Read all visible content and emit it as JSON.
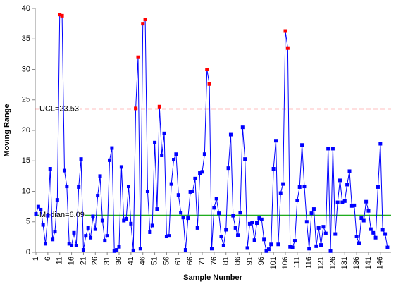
{
  "chart_data": {
    "type": "line",
    "x_label": "Sample Number",
    "y_label": "Moving Range",
    "x": [
      1,
      2,
      3,
      4,
      5,
      6,
      7,
      8,
      9,
      10,
      11,
      12,
      13,
      14,
      15,
      16,
      17,
      18,
      19,
      20,
      21,
      22,
      23,
      24,
      25,
      26,
      27,
      28,
      29,
      30,
      31,
      32,
      33,
      34,
      35,
      36,
      37,
      38,
      39,
      40,
      41,
      42,
      43,
      44,
      45,
      46,
      47,
      48,
      49,
      50,
      51,
      52,
      53,
      54,
      55,
      56,
      57,
      58,
      59,
      60,
      61,
      62,
      63,
      64,
      65,
      66,
      67,
      68,
      69,
      70,
      71,
      72,
      73,
      74,
      75,
      76,
      77,
      78,
      79,
      80,
      81,
      82,
      83,
      84,
      85,
      86,
      87,
      88,
      89,
      90,
      91,
      92,
      93,
      94,
      95,
      96,
      97,
      98,
      99,
      100,
      101,
      102,
      103,
      104,
      105,
      106,
      107,
      108,
      109,
      110,
      111,
      112,
      113,
      114,
      115,
      116,
      117,
      118,
      119,
      120,
      121,
      122,
      123,
      124,
      125,
      126,
      127,
      128,
      129,
      130,
      131,
      132,
      133,
      134,
      135,
      136,
      137,
      138,
      139,
      140,
      141,
      142,
      143,
      144,
      145,
      146,
      147,
      148,
      149
    ],
    "series": [
      {
        "color": "#0000ff",
        "out_color": "#ff0000",
        "values": [
          6.3,
          7.5,
          7,
          4.5,
          1.4,
          6,
          13.7,
          2.1,
          3.4,
          8.6,
          39,
          38.8,
          13.4,
          10.8,
          1.4,
          1.1,
          3.2,
          1.1,
          10.7,
          15.3,
          0.4,
          2.7,
          4,
          2.4,
          5.9,
          3.8,
          9.3,
          12.5,
          5.2,
          1.9,
          2.7,
          15.1,
          17.1,
          0.2,
          0.4,
          0.9,
          14,
          5.2,
          5.5,
          10.8,
          4.7,
          0.3,
          23.6,
          32,
          0.6,
          37.5,
          38.2,
          10,
          3.3,
          4.4,
          18,
          7.1,
          23.9,
          15.9,
          19.5,
          2.6,
          2.7,
          11.2,
          15.2,
          16.1,
          9.4,
          6.5,
          5.7,
          0.4,
          5.6,
          9.9,
          10,
          12.1,
          4,
          13,
          13.2,
          16.1,
          30,
          27.6,
          0.6,
          7.3,
          8.8,
          6.4,
          2.6,
          1.1,
          3.7,
          13.8,
          19.3,
          6,
          4,
          2.8,
          6.5,
          20.5,
          15.3,
          0.7,
          4.7,
          4.9,
          2,
          4.8,
          5.6,
          5.4,
          2.1,
          0.2,
          0.5,
          1.3,
          13.7,
          18.3,
          1.3,
          9.7,
          11.2,
          36.3,
          33.5,
          0.9,
          0.8,
          1.9,
          8.5,
          10.7,
          17.6,
          10.8,
          5,
          0.6,
          6.4,
          7.1,
          1,
          4,
          1.2,
          4.2,
          3.1,
          17,
          0.2,
          17,
          3,
          8.2,
          11.8,
          8.2,
          8.4,
          11.1,
          13.3,
          7.6,
          7.7,
          2.6,
          1.5,
          5.6,
          5.2,
          8.3,
          6.8,
          3.8,
          3.2,
          2.4,
          10.7,
          17.8,
          3.7,
          3,
          0.8
        ]
      }
    ],
    "reference_lines": [
      {
        "label": "UCL=23.53",
        "value": 23.53,
        "color": "#ff0000",
        "dashed": true
      },
      {
        "label": "Median=6.09",
        "value": 6.09,
        "color": "#00a000",
        "dashed": false
      }
    ],
    "xlim": [
      0.7,
      150.5
    ],
    "ylim": [
      0,
      40
    ],
    "xticks": [
      1,
      6,
      11,
      16,
      21,
      26,
      31,
      36,
      41,
      46,
      51,
      56,
      61,
      66,
      71,
      76,
      81,
      86,
      91,
      96,
      101,
      106,
      111,
      116,
      121,
      126,
      131,
      136,
      141,
      146
    ],
    "yticks": [
      0,
      5,
      10,
      15,
      20,
      25,
      30,
      35,
      40
    ]
  }
}
